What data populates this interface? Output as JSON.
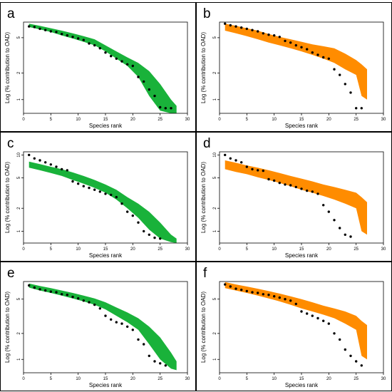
{
  "chart_data": [
    {
      "panel": "a",
      "type": "scatter",
      "band_color": "#19b23a",
      "xlabel": "Species rank",
      "ylabel": "Log (% contribution to OAD)",
      "xlim": [
        0,
        30
      ],
      "ylim": [
        0.7,
        7.5
      ],
      "log_y": true,
      "xticks": [
        "0",
        "5",
        "10",
        "15",
        "20",
        "25",
        "30"
      ],
      "yticks": [
        "1",
        "2",
        "5"
      ],
      "points": [
        [
          1,
          6.7
        ],
        [
          2,
          6.6
        ],
        [
          3,
          6.3
        ],
        [
          4,
          6.1
        ],
        [
          5,
          5.9
        ],
        [
          6,
          5.8
        ],
        [
          7,
          5.5
        ],
        [
          8,
          5.3
        ],
        [
          9,
          5.1
        ],
        [
          10,
          4.9
        ],
        [
          11,
          4.7
        ],
        [
          12,
          4.3
        ],
        [
          13,
          4.1
        ],
        [
          14,
          3.8
        ],
        [
          15,
          3.4
        ],
        [
          16,
          3.1
        ],
        [
          17,
          2.9
        ],
        [
          18,
          2.7
        ],
        [
          19,
          2.5
        ],
        [
          20,
          2.4
        ],
        [
          21,
          1.8
        ],
        [
          22,
          1.6
        ],
        [
          23,
          1.3
        ],
        [
          24,
          1.1
        ],
        [
          25,
          0.82
        ],
        [
          26,
          0.8
        ],
        [
          27,
          0.8
        ]
      ],
      "band": {
        "x": [
          1,
          3,
          5,
          7,
          9,
          11,
          13,
          15,
          17,
          19,
          21,
          23,
          25,
          27,
          28
        ],
        "upper": [
          7.2,
          6.8,
          6.4,
          6.0,
          5.6,
          5.2,
          4.8,
          4.1,
          3.5,
          3.0,
          2.6,
          2.1,
          1.5,
          1.0,
          0.85
        ],
        "lower": [
          6.6,
          6.2,
          5.8,
          5.3,
          4.9,
          4.5,
          4.1,
          3.5,
          2.9,
          2.4,
          1.8,
          1.1,
          0.75,
          0.7,
          0.7
        ]
      }
    },
    {
      "panel": "b",
      "type": "scatter",
      "band_color": "#ff8c00",
      "xlabel": "Species rank",
      "ylabel": "Log (% contribution to OAD)",
      "xlim": [
        0,
        30
      ],
      "ylim": [
        0.7,
        7.5
      ],
      "log_y": true,
      "xticks": [
        "0",
        "5",
        "10",
        "15",
        "20",
        "25",
        "30"
      ],
      "yticks": [
        "1",
        "2",
        "5"
      ],
      "points": [
        [
          1,
          7.2
        ],
        [
          2,
          6.9
        ],
        [
          3,
          6.7
        ],
        [
          4,
          6.5
        ],
        [
          5,
          6.3
        ],
        [
          6,
          6.1
        ],
        [
          7,
          5.9
        ],
        [
          8,
          5.6
        ],
        [
          9,
          5.4
        ],
        [
          10,
          5.3
        ],
        [
          11,
          5.1
        ],
        [
          12,
          4.6
        ],
        [
          13,
          4.4
        ],
        [
          14,
          4.1
        ],
        [
          15,
          3.9
        ],
        [
          16,
          3.7
        ],
        [
          17,
          3.4
        ],
        [
          18,
          3.2
        ],
        [
          19,
          3.0
        ],
        [
          20,
          2.9
        ],
        [
          21,
          2.2
        ],
        [
          22,
          1.9
        ],
        [
          23,
          1.5
        ],
        [
          24,
          1.2
        ],
        [
          25,
          0.8
        ],
        [
          26,
          0.8
        ]
      ],
      "band": {
        "x": [
          1,
          3,
          5,
          7,
          9,
          11,
          13,
          15,
          17,
          19,
          21,
          23,
          25,
          26,
          27
        ],
        "upper": [
          7.2,
          6.8,
          6.4,
          6.0,
          5.5,
          5.1,
          4.8,
          4.5,
          4.2,
          4.0,
          3.8,
          3.3,
          2.8,
          2.5,
          2.2
        ],
        "lower": [
          6.0,
          5.6,
          5.2,
          4.8,
          4.4,
          4.1,
          3.8,
          3.5,
          3.2,
          2.9,
          2.6,
          2.2,
          1.9,
          1.1,
          1.0
        ]
      }
    },
    {
      "panel": "c",
      "type": "scatter",
      "band_color": "#19b23a",
      "xlabel": "Species rank",
      "ylabel": "Log (% contribution to OAD)",
      "xlim": [
        0,
        30
      ],
      "ylim": [
        0.7,
        11
      ],
      "log_y": true,
      "xticks": [
        "0",
        "5",
        "10",
        "15",
        "20",
        "25",
        "30"
      ],
      "yticks": [
        "1",
        "2",
        "5",
        "10"
      ],
      "points": [
        [
          1,
          10
        ],
        [
          2,
          9
        ],
        [
          3,
          8.5
        ],
        [
          4,
          8
        ],
        [
          5,
          7.5
        ],
        [
          6,
          7
        ],
        [
          7,
          6.5
        ],
        [
          8,
          6.3
        ],
        [
          9,
          4.5
        ],
        [
          10,
          4.2
        ],
        [
          11,
          3.9
        ],
        [
          12,
          3.7
        ],
        [
          13,
          3.5
        ],
        [
          14,
          3.3
        ],
        [
          15,
          3.1
        ],
        [
          16,
          3.0
        ],
        [
          17,
          2.8
        ],
        [
          18,
          2.3
        ],
        [
          19,
          1.8
        ],
        [
          20,
          1.6
        ],
        [
          21,
          1.3
        ],
        [
          22,
          1.0
        ],
        [
          23,
          0.9
        ],
        [
          24,
          0.82
        ],
        [
          25,
          0.8
        ]
      ],
      "band": {
        "x": [
          1,
          3,
          5,
          7,
          9,
          11,
          13,
          15,
          17,
          19,
          21,
          23,
          25,
          27,
          28
        ],
        "upper": [
          8.2,
          7.6,
          7.0,
          6.5,
          5.9,
          5.3,
          4.7,
          4.1,
          3.5,
          2.8,
          2.3,
          1.8,
          1.3,
          0.9,
          0.8
        ],
        "lower": [
          6.8,
          6.3,
          5.8,
          5.3,
          4.7,
          4.2,
          3.7,
          3.2,
          2.6,
          2.0,
          1.5,
          1.05,
          0.8,
          0.72,
          0.7
        ]
      }
    },
    {
      "panel": "d",
      "type": "scatter",
      "band_color": "#ff8c00",
      "xlabel": "Species rank",
      "ylabel": "Log (% contribution to OAD)",
      "xlim": [
        0,
        30
      ],
      "ylim": [
        0.7,
        11
      ],
      "log_y": true,
      "xticks": [
        "0",
        "5",
        "10",
        "15",
        "20",
        "25",
        "30"
      ],
      "yticks": [
        "1",
        "2",
        "5",
        "10"
      ],
      "points": [
        [
          1,
          10
        ],
        [
          2,
          9
        ],
        [
          3,
          8.5
        ],
        [
          4,
          8
        ],
        [
          5,
          7
        ],
        [
          6,
          6.5
        ],
        [
          7,
          6.3
        ],
        [
          8,
          6.2
        ],
        [
          9,
          4.8
        ],
        [
          10,
          4.6
        ],
        [
          11,
          4.3
        ],
        [
          12,
          4.1
        ],
        [
          13,
          4.0
        ],
        [
          14,
          3.8
        ],
        [
          15,
          3.6
        ],
        [
          16,
          3.4
        ],
        [
          17,
          3.3
        ],
        [
          18,
          3.1
        ],
        [
          19,
          2.2
        ],
        [
          20,
          1.8
        ],
        [
          21,
          1.4
        ],
        [
          22,
          1.1
        ],
        [
          23,
          0.9
        ],
        [
          24,
          0.85
        ]
      ],
      "band": {
        "x": [
          1,
          3,
          5,
          7,
          9,
          11,
          13,
          15,
          17,
          19,
          21,
          23,
          25,
          26,
          27
        ],
        "upper": [
          8.5,
          7.9,
          7.3,
          6.8,
          6.3,
          5.8,
          5.3,
          4.9,
          4.5,
          4.1,
          3.8,
          3.5,
          3.2,
          2.8,
          2.4
        ],
        "lower": [
          6.5,
          6.0,
          5.6,
          5.1,
          4.7,
          4.3,
          3.9,
          3.5,
          3.2,
          2.9,
          2.6,
          2.3,
          2.0,
          1.0,
          0.9
        ]
      }
    },
    {
      "panel": "e",
      "type": "scatter",
      "band_color": "#19b23a",
      "xlabel": "Species rank",
      "ylabel": "Log (% contribution to OAD)",
      "xlim": [
        0,
        30
      ],
      "ylim": [
        0.7,
        8
      ],
      "log_y": true,
      "xticks": [
        "0",
        "5",
        "10",
        "15",
        "20",
        "25",
        "30"
      ],
      "yticks": [
        "1",
        "2",
        "5"
      ],
      "points": [
        [
          1,
          7.2
        ],
        [
          2,
          6.8
        ],
        [
          3,
          6.5
        ],
        [
          4,
          6.3
        ],
        [
          5,
          6.1
        ],
        [
          6,
          6.0
        ],
        [
          7,
          5.7
        ],
        [
          8,
          5.6
        ],
        [
          9,
          5.3
        ],
        [
          10,
          5.1
        ],
        [
          11,
          4.8
        ],
        [
          12,
          4.6
        ],
        [
          13,
          4.3
        ],
        [
          14,
          3.9
        ],
        [
          15,
          3.2
        ],
        [
          16,
          2.9
        ],
        [
          17,
          2.7
        ],
        [
          18,
          2.6
        ],
        [
          19,
          2.4
        ],
        [
          20,
          2.2
        ],
        [
          21,
          1.7
        ],
        [
          22,
          1.5
        ],
        [
          23,
          1.1
        ],
        [
          24,
          0.95
        ],
        [
          25,
          0.9
        ],
        [
          26,
          0.85
        ]
      ],
      "band": {
        "x": [
          1,
          3,
          5,
          7,
          9,
          11,
          13,
          15,
          17,
          19,
          21,
          23,
          25,
          27,
          28
        ],
        "upper": [
          7.6,
          7.1,
          6.7,
          6.3,
          5.9,
          5.5,
          5.1,
          4.6,
          4.0,
          3.5,
          3.0,
          2.4,
          1.8,
          1.2,
          0.95
        ],
        "lower": [
          6.8,
          6.3,
          5.9,
          5.5,
          5.1,
          4.7,
          4.3,
          3.8,
          3.2,
          2.7,
          2.2,
          1.5,
          1.0,
          0.78,
          0.75
        ]
      }
    },
    {
      "panel": "f",
      "type": "scatter",
      "band_color": "#ff8c00",
      "xlabel": "Species rank",
      "ylabel": "Log (% contribution to OAD)",
      "xlim": [
        0,
        30
      ],
      "ylim": [
        0.7,
        8
      ],
      "log_y": true,
      "xticks": [
        "0",
        "5",
        "10",
        "15",
        "20",
        "25",
        "30"
      ],
      "yticks": [
        "1",
        "2",
        "5"
      ],
      "points": [
        [
          1,
          7.4
        ],
        [
          2,
          7.0
        ],
        [
          3,
          6.6
        ],
        [
          4,
          6.4
        ],
        [
          5,
          6.2
        ],
        [
          6,
          6.0
        ],
        [
          7,
          5.9
        ],
        [
          8,
          5.7
        ],
        [
          9,
          5.6
        ],
        [
          10,
          5.4
        ],
        [
          11,
          5.2
        ],
        [
          12,
          5.0
        ],
        [
          13,
          4.8
        ],
        [
          14,
          4.4
        ],
        [
          15,
          3.6
        ],
        [
          16,
          3.4
        ],
        [
          17,
          3.2
        ],
        [
          18,
          3.0
        ],
        [
          19,
          2.8
        ],
        [
          20,
          2.6
        ],
        [
          21,
          2.0
        ],
        [
          22,
          1.7
        ],
        [
          23,
          1.3
        ],
        [
          24,
          1.1
        ],
        [
          25,
          0.95
        ],
        [
          26,
          0.85
        ]
      ],
      "band": {
        "x": [
          1,
          3,
          5,
          7,
          9,
          11,
          13,
          15,
          17,
          19,
          21,
          23,
          25,
          26,
          27
        ],
        "upper": [
          7.9,
          7.4,
          7.0,
          6.6,
          6.2,
          5.8,
          5.4,
          5.0,
          4.6,
          4.2,
          3.9,
          3.6,
          3.2,
          2.8,
          2.5
        ],
        "lower": [
          6.7,
          6.3,
          5.9,
          5.5,
          5.1,
          4.7,
          4.3,
          3.9,
          3.6,
          3.3,
          3.0,
          2.6,
          2.2,
          1.1,
          1.0
        ]
      }
    }
  ]
}
